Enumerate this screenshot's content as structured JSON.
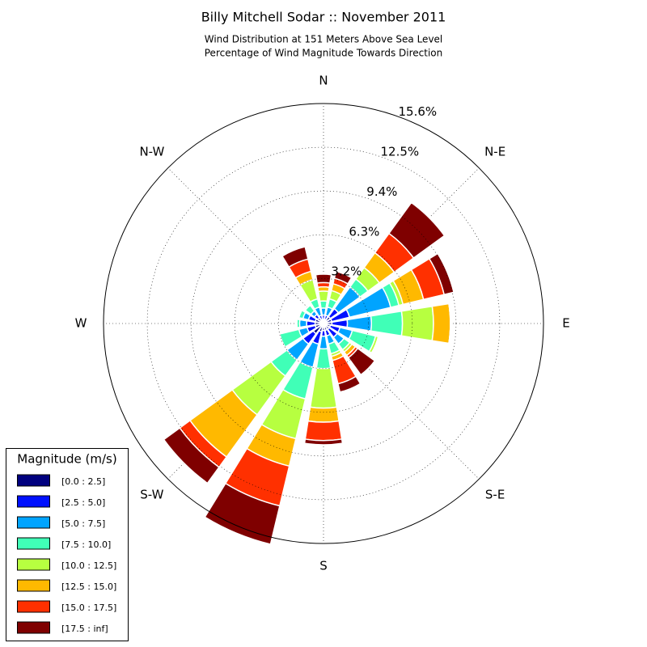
{
  "chart_data": {
    "type": "windrose",
    "title": "Billy Mitchell Sodar :: November 2011",
    "subtitle": [
      "Wind Distribution at 151 Meters Above Sea Level",
      "Percentage of Wind Magnitude Towards Direction"
    ],
    "categories": [
      "N",
      null,
      "N-E",
      null,
      "E",
      null,
      "S-E",
      null,
      "S",
      null,
      "S-W",
      null,
      "W",
      null,
      "N-W",
      null
    ],
    "ylim": [
      0,
      15.6
    ],
    "yticks": [
      {
        "value": 3.2,
        "label": "3.2%"
      },
      {
        "value": 6.3,
        "label": "6.3%"
      },
      {
        "value": 9.4,
        "label": "9.4%"
      },
      {
        "value": 12.5,
        "label": "12.5%"
      },
      {
        "value": 15.6,
        "label": "15.6%"
      }
    ],
    "grid": true,
    "legend_title": "Magnitude (m/s)",
    "legend_position": "lower left",
    "series": [
      {
        "name": "[0.0 : 2.5]",
        "color": "#00007f",
        "values": [
          0.3,
          0.3,
          0.6,
          0.6,
          0.6,
          0.5,
          0.5,
          0.5,
          0.5,
          0.6,
          0.9,
          0.6,
          0.6,
          0.6,
          0.5,
          0.3
        ]
      },
      {
        "name": "[2.5 : 5.0]",
        "color": "#0010ff",
        "values": [
          0.3,
          0.3,
          0.7,
          1.3,
          1.1,
          0.7,
          0.7,
          0.4,
          0.4,
          0.9,
          0.9,
          0.6,
          0.6,
          0.5,
          0.3,
          0.3
        ]
      },
      {
        "name": "[5.0 : 7.5]",
        "color": "#00a4ff",
        "values": [
          0.5,
          0.6,
          1.9,
          3.0,
          1.7,
          0.9,
          0.6,
          0.6,
          0.9,
          1.7,
          1.4,
          0.6,
          0.5,
          0.4,
          0.3,
          0.6
        ]
      },
      {
        "name": "[7.5 : 10.0]",
        "color": "#40ffb7",
        "values": [
          0.5,
          0.6,
          0.7,
          0.6,
          2.2,
          1.7,
          0.5,
          0.7,
          1.4,
          2.3,
          1.4,
          1.4,
          0.2,
          0.3,
          0.5,
          0.6
        ]
      },
      {
        "name": "[10.0 : 12.5]",
        "color": "#b7ff40",
        "values": [
          0.7,
          0.6,
          1.0,
          0.3,
          2.2,
          0.2,
          0.2,
          0.2,
          2.8,
          2.9,
          3.4,
          0,
          0,
          0,
          0,
          1.4
        ]
      },
      {
        "name": "[12.5 : 15.0]",
        "color": "#ffb900",
        "values": [
          0.3,
          0.5,
          1.3,
          1.5,
          1.2,
          0,
          0.3,
          0.3,
          1.0,
          2.0,
          3.7,
          0,
          0,
          0,
          0,
          0.6
        ]
      },
      {
        "name": "[15.0 : 17.5]",
        "color": "#ff3000",
        "values": [
          0.3,
          0.4,
          1.7,
          1.5,
          0,
          0,
          0.2,
          1.7,
          1.3,
          2.9,
          0.9,
          0,
          0,
          0,
          0,
          0.9
        ]
      },
      {
        "name": "[17.5 : inf]",
        "color": "#7f0000",
        "values": [
          0.6,
          0.5,
          2.7,
          0.7,
          0,
          0,
          1.5,
          0.6,
          0.3,
          2.8,
          1.4,
          0,
          0,
          0,
          0,
          0.9
        ]
      }
    ]
  }
}
